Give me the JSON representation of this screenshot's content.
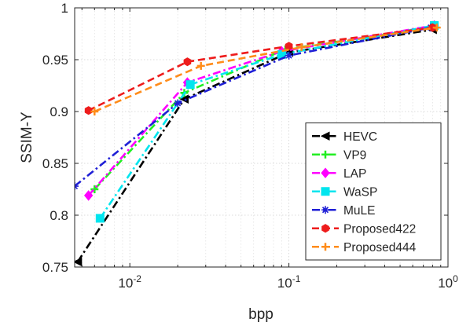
{
  "chart_data": {
    "type": "line",
    "title": "",
    "xlabel": "bpp",
    "ylabel": "SSIM-Y",
    "xscale": "log",
    "xlim": [
      0.0045,
      1
    ],
    "ylim": [
      0.75,
      1
    ],
    "xticks": [
      0.01,
      0.1,
      1
    ],
    "xtick_labels": [
      {
        "base": "10",
        "exp": "-2"
      },
      {
        "base": "10",
        "exp": "-1"
      },
      {
        "base": "10",
        "exp": "0"
      }
    ],
    "yticks": [
      0.75,
      0.8,
      0.85,
      0.9,
      0.95,
      1
    ],
    "ytick_labels": [
      "0.75",
      "0.8",
      "0.85",
      "0.9",
      "0.95",
      "1"
    ],
    "grid": true,
    "legend_position": "bottom-right",
    "series": [
      {
        "name": "HEVC",
        "color": "#000000",
        "marker": "triangle-left",
        "dash": "dashdot",
        "points": [
          [
            0.0047,
            0.755
          ],
          [
            0.022,
            0.912
          ],
          [
            0.1,
            0.957
          ],
          [
            0.8,
            0.979
          ]
        ]
      },
      {
        "name": "VP9",
        "color": "#22ee22",
        "marker": "plus",
        "dash": "dashdot",
        "points": [
          [
            0.006,
            0.825
          ],
          [
            0.022,
            0.918
          ],
          [
            0.095,
            0.96
          ],
          [
            0.8,
            0.981
          ]
        ]
      },
      {
        "name": "LAP",
        "color": "#ff00ff",
        "marker": "diamond",
        "dash": "dashdot",
        "points": [
          [
            0.0055,
            0.819
          ],
          [
            0.023,
            0.928
          ],
          [
            0.09,
            0.958
          ],
          [
            0.82,
            0.983
          ]
        ]
      },
      {
        "name": "WaSP",
        "color": "#00e5ee",
        "marker": "square",
        "dash": "dashdot",
        "points": [
          [
            0.0065,
            0.797
          ],
          [
            0.024,
            0.926
          ],
          [
            0.09,
            0.955
          ],
          [
            0.82,
            0.983
          ]
        ]
      },
      {
        "name": "MuLE",
        "color": "#1f1fd6",
        "marker": "asterisk",
        "dash": "dashdot",
        "points": [
          [
            0.0045,
            0.828
          ],
          [
            0.02,
            0.908
          ],
          [
            0.1,
            0.954
          ],
          [
            0.78,
            0.981
          ]
        ]
      },
      {
        "name": "Proposed422",
        "color": "#ee1c1c",
        "marker": "hexagon",
        "dash": "dash",
        "points": [
          [
            0.0055,
            0.901
          ],
          [
            0.023,
            0.948
          ],
          [
            0.1,
            0.963
          ],
          [
            0.8,
            0.981
          ]
        ]
      },
      {
        "name": "Proposed444",
        "color": "#ff8c1a",
        "marker": "plus",
        "dash": "dash",
        "points": [
          [
            0.006,
            0.9
          ],
          [
            0.028,
            0.944
          ],
          [
            0.12,
            0.962
          ],
          [
            0.85,
            0.981
          ]
        ]
      }
    ]
  }
}
